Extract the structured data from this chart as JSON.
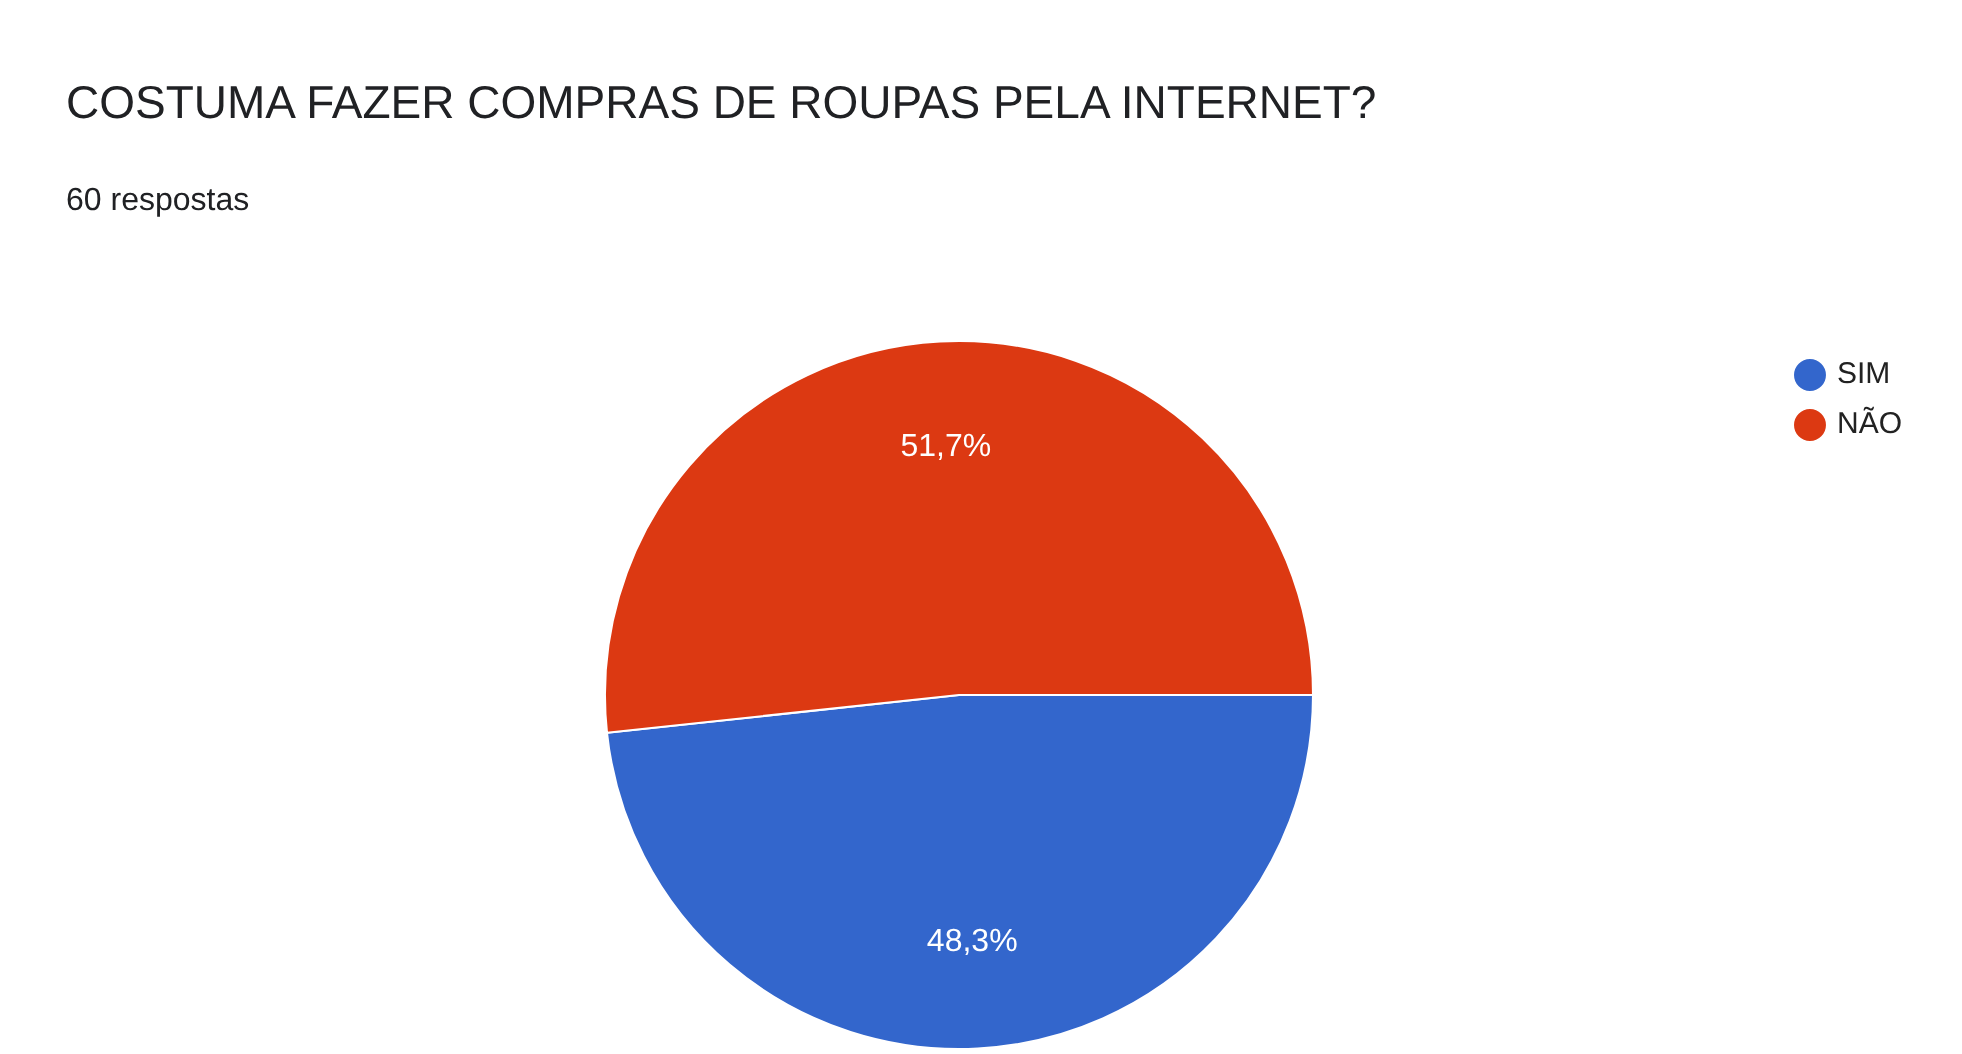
{
  "chart_data": {
    "type": "pie",
    "title": "COSTUMA FAZER COMPRAS DE ROUPAS PELA INTERNET?",
    "subtitle": "60 respostas",
    "categories": [
      "SIM",
      "NÃO"
    ],
    "values": [
      48.3,
      51.7
    ],
    "colors": [
      "#3366cc",
      "#dc3912"
    ],
    "value_labels": [
      "48,3%",
      "51,7%"
    ],
    "legend": "top right"
  }
}
